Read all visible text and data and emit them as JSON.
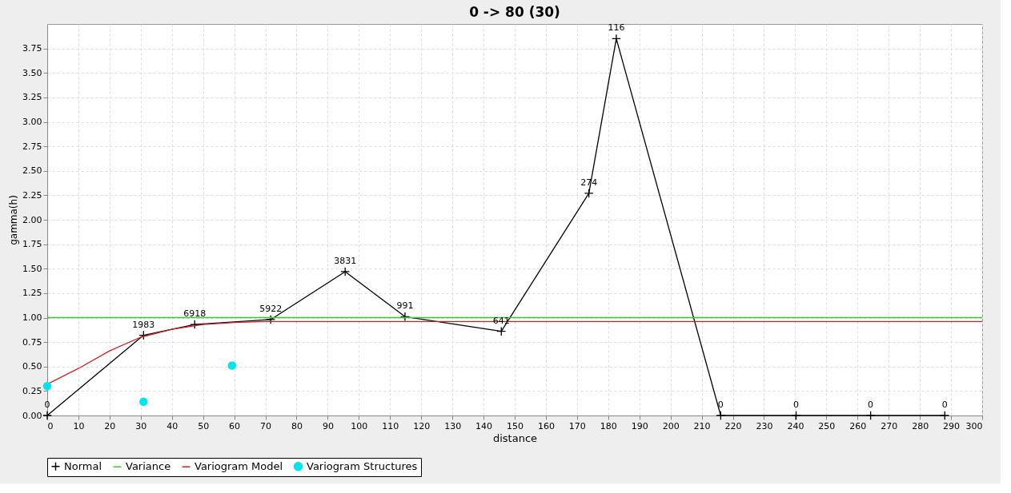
{
  "chart_data": {
    "type": "line",
    "title": "0 -> 80 (30)",
    "xlabel": "distance",
    "ylabel": "gamma(h)",
    "xlim": [
      0,
      300
    ],
    "xticks": [
      0,
      10,
      20,
      30,
      40,
      50,
      60,
      70,
      80,
      90,
      100,
      110,
      120,
      130,
      140,
      150,
      160,
      170,
      180,
      190,
      200,
      210,
      220,
      230,
      240,
      250,
      260,
      270,
      280,
      290,
      300
    ],
    "ylim": [
      0,
      4.0
    ],
    "yticks": [
      {
        "value": 0,
        "label": "0.00"
      },
      {
        "value": 0.25,
        "label": "0.25"
      },
      {
        "value": 0.5,
        "label": "0.50"
      },
      {
        "value": 0.75,
        "label": "0.75"
      },
      {
        "value": 1,
        "label": "1.00"
      },
      {
        "value": 1.25,
        "label": "1.25"
      },
      {
        "value": 1.5,
        "label": "1.50"
      },
      {
        "value": 1.75,
        "label": "1.75"
      },
      {
        "value": 2,
        "label": "2.00"
      },
      {
        "value": 2.25,
        "label": "2.25"
      },
      {
        "value": 2.5,
        "label": "2.50"
      },
      {
        "value": 2.75,
        "label": "2.75"
      },
      {
        "value": 3,
        "label": "3.00"
      },
      {
        "value": 3.25,
        "label": "3.25"
      },
      {
        "value": 3.5,
        "label": "3.50"
      },
      {
        "value": 3.75,
        "label": "3.75"
      }
    ],
    "grid": true,
    "legend": "bottom",
    "annotations": [
      {
        "text": "0",
        "x": 0,
        "y": 0
      },
      {
        "text": "1983",
        "x": 30.9,
        "y": 0.82
      },
      {
        "text": "6918",
        "x": 47.3,
        "y": 0.93
      },
      {
        "text": "5922",
        "x": 71.7,
        "y": 0.98
      },
      {
        "text": "3831",
        "x": 95.6,
        "y": 1.47
      },
      {
        "text": "991",
        "x": 114.8,
        "y": 1.01
      },
      {
        "text": "641",
        "x": 145.7,
        "y": 0.86
      },
      {
        "text": "274",
        "x": 173.8,
        "y": 2.27
      },
      {
        "text": "116",
        "x": 182.6,
        "y": 3.85
      },
      {
        "text": "0",
        "x": 216.1,
        "y": 0
      },
      {
        "text": "0",
        "x": 240.3,
        "y": 0
      },
      {
        "text": "0",
        "x": 264.2,
        "y": 0
      },
      {
        "text": "0",
        "x": 288,
        "y": 0
      }
    ],
    "series": [
      {
        "name": "Normal",
        "type": "line",
        "marker": "cross",
        "color": "#000000",
        "x": [
          0,
          30.9,
          47.3,
          71.7,
          95.6,
          114.8,
          145.7,
          173.8,
          182.6,
          216.1,
          240.3,
          264.2,
          288
        ],
        "values": [
          0,
          0.82,
          0.93,
          0.98,
          1.47,
          1.01,
          0.86,
          2.27,
          3.85,
          0,
          0,
          0,
          0
        ]
      },
      {
        "name": "Variance",
        "type": "line",
        "marker": "none",
        "color": "#33cc33",
        "x": [
          0,
          300
        ],
        "values": [
          1.0,
          1.0
        ]
      },
      {
        "name": "Variogram Model",
        "type": "line",
        "marker": "none",
        "color": "#cc2222",
        "x": [
          0,
          10,
          20,
          30,
          40,
          50,
          60,
          70,
          80,
          300
        ],
        "values": [
          0.32,
          0.48,
          0.66,
          0.8,
          0.88,
          0.93,
          0.95,
          0.96,
          0.96,
          0.96
        ]
      },
      {
        "name": "Variogram Structures",
        "type": "scatter",
        "marker": "circle",
        "color": "#00e5ee",
        "x": [
          0,
          30.9,
          59.3
        ],
        "values": [
          0.3,
          0.14,
          0.51
        ]
      }
    ]
  }
}
